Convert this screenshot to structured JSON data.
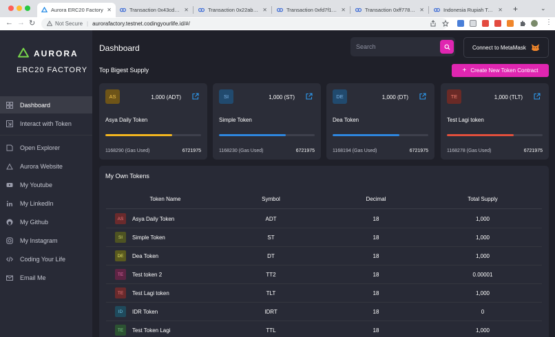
{
  "browser": {
    "tabs": [
      {
        "label": "Aurora ERC20 Factory",
        "active": true,
        "favicon": "aurora-icon"
      },
      {
        "label": "Transaction 0x43cd95b",
        "active": false,
        "favicon": "transaction-icon"
      },
      {
        "label": "Transaction 0x22ab266",
        "active": false,
        "favicon": "transaction-icon"
      },
      {
        "label": "Transaction 0xfd7f1406",
        "active": false,
        "favicon": "transaction-icon"
      },
      {
        "label": "Transaction 0xff7785e4",
        "active": false,
        "favicon": "transaction-icon"
      },
      {
        "label": "Indonesia Rupiah Token",
        "active": false,
        "favicon": "transaction-icon"
      }
    ],
    "security_label": "Not Secure",
    "url": "aurorafactory.testnet.codingyourlife.id/#/"
  },
  "sidebar": {
    "logo_text": "AURORA",
    "app_subtitle": "ERC20  FACTORY",
    "items": [
      {
        "label": "Dashboard",
        "icon": "dashboard-icon",
        "active": true
      },
      {
        "label": "Interact with Token",
        "icon": "interact-icon",
        "active": false
      },
      {
        "label": "Open Explorer",
        "icon": "explorer-icon",
        "active": false
      },
      {
        "label": "Aurora Website",
        "icon": "aurora-website-icon",
        "active": false
      },
      {
        "label": "My Youtube",
        "icon": "youtube-icon",
        "active": false
      },
      {
        "label": "My LinkedIn",
        "icon": "linkedin-icon",
        "active": false
      },
      {
        "label": "My Github",
        "icon": "github-icon",
        "active": false
      },
      {
        "label": "My Instagram",
        "icon": "instagram-icon",
        "active": false
      },
      {
        "label": "Coding Your Life",
        "icon": "code-icon",
        "active": false
      },
      {
        "label": "Email Me",
        "icon": "email-icon",
        "active": false
      }
    ]
  },
  "header": {
    "title": "Dashboard",
    "search_placeholder": "Search",
    "metamask_label": "Connect to MetaMask"
  },
  "supply": {
    "section_title": "Top Bigest Supply",
    "create_button": "Create New Token Contract",
    "cards": [
      {
        "initials": "AS",
        "supply": "1,000  (ADT)",
        "name": "Asya Daily Token",
        "gas": "1168290 (Gas Used)",
        "total": "6721975",
        "progress": 0.7,
        "bar_color": "#f2b51f",
        "avatar_bg": "#6e5418",
        "avatar_fg": "#f0c14b"
      },
      {
        "initials": "SI",
        "supply": "1,000  (ST)",
        "name": "Simple Token",
        "gas": "1168230 (Gas Used)",
        "total": "6721975",
        "progress": 0.7,
        "bar_color": "#2e86de",
        "avatar_bg": "#214a6e",
        "avatar_fg": "#7fb6ea"
      },
      {
        "initials": "DE",
        "supply": "1,000  (DT)",
        "name": "Dea Token",
        "gas": "1168194 (Gas Used)",
        "total": "6721975",
        "progress": 0.7,
        "bar_color": "#2e86de",
        "avatar_bg": "#214a6e",
        "avatar_fg": "#7fb6ea"
      },
      {
        "initials": "TE",
        "supply": "1,000  (TLT)",
        "name": "Test Lagi token",
        "gas": "1168278 (Gas Used)",
        "total": "6721975",
        "progress": 0.7,
        "bar_color": "#e14f3c",
        "avatar_bg": "#6a2a26",
        "avatar_fg": "#ef7d6e"
      }
    ]
  },
  "own_tokens": {
    "title": "My Own Tokens",
    "columns": [
      "Token Name",
      "Symbol",
      "Decimal",
      "Total Supply"
    ],
    "rows": [
      {
        "initials": "AS",
        "name": "Asya Daily Token",
        "symbol": "ADT",
        "decimal": "18",
        "supply": "1,000",
        "avatar_bg": "#6a2a2c",
        "avatar_fg": "#ee7a7e"
      },
      {
        "initials": "SI",
        "name": "Simple Token",
        "symbol": "ST",
        "decimal": "18",
        "supply": "1,000",
        "avatar_bg": "#4e5322",
        "avatar_fg": "#d3d96a"
      },
      {
        "initials": "DE",
        "name": "Dea Token",
        "symbol": "DT",
        "decimal": "18",
        "supply": "1,000",
        "avatar_bg": "#5a5a1e",
        "avatar_fg": "#e1e065"
      },
      {
        "initials": "TE",
        "name": "Test token 2",
        "symbol": "TT2",
        "decimal": "18",
        "supply": "0.00001",
        "avatar_bg": "#5e2444",
        "avatar_fg": "#e36aa8"
      },
      {
        "initials": "TE",
        "name": "Test Lagi token",
        "symbol": "TLT",
        "decimal": "18",
        "supply": "1,000",
        "avatar_bg": "#6a2a2c",
        "avatar_fg": "#ee7a7e"
      },
      {
        "initials": "ID",
        "name": "IDR Token",
        "symbol": "IDRT",
        "decimal": "18",
        "supply": "0",
        "avatar_bg": "#1f4a5c",
        "avatar_fg": "#6ec3e6"
      },
      {
        "initials": "TE",
        "name": "Test Token Lagi",
        "symbol": "TTL",
        "decimal": "18",
        "supply": "1,000",
        "avatar_bg": "#2c5232",
        "avatar_fg": "#7fd38a"
      }
    ]
  },
  "colors": {
    "accent": "#e026b1",
    "sidebar_bg": "#282a36",
    "main_bg": "#1f2029",
    "card_bg": "#2b2d38"
  }
}
